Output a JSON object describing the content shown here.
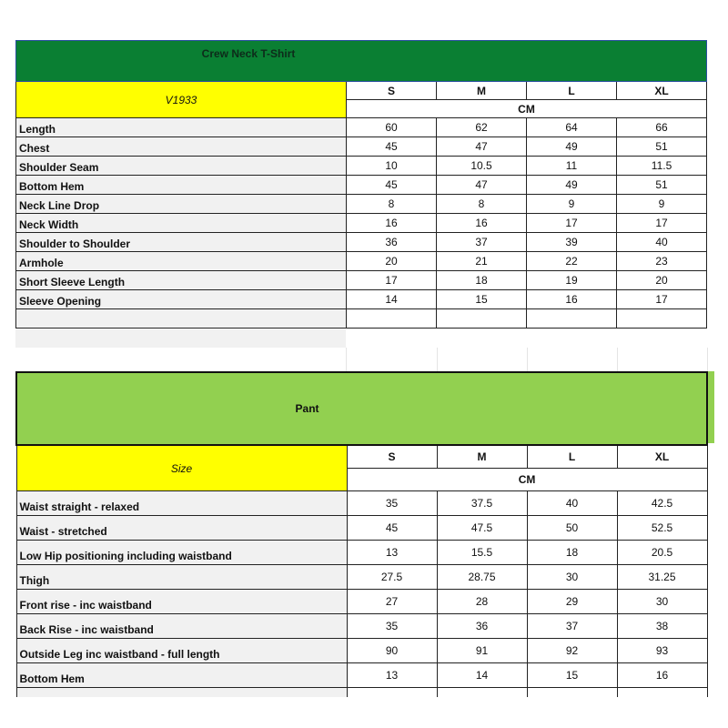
{
  "shirt": {
    "title": "Crew Neck T-Shirt",
    "code": "V1933",
    "sizes": [
      "S",
      "M",
      "L",
      "XL"
    ],
    "unit": "CM",
    "rows": [
      {
        "label": "Length",
        "values": [
          "60",
          "62",
          "64",
          "66"
        ]
      },
      {
        "label": "Chest",
        "values": [
          "45",
          "47",
          "49",
          "51"
        ]
      },
      {
        "label": "Shoulder Seam",
        "values": [
          "10",
          "10.5",
          "11",
          "11.5"
        ]
      },
      {
        "label": "Bottom Hem",
        "values": [
          "45",
          "47",
          "49",
          "51"
        ]
      },
      {
        "label": "Neck Line Drop",
        "values": [
          "8",
          "8",
          "9",
          "9"
        ]
      },
      {
        "label": "Neck Width",
        "values": [
          "16",
          "16",
          "17",
          "17"
        ]
      },
      {
        "label": "Shoulder to Shoulder",
        "values": [
          "36",
          "37",
          "39",
          "40"
        ]
      },
      {
        "label": "Armhole",
        "values": [
          "20",
          "21",
          "22",
          "23"
        ]
      },
      {
        "label": "Short Sleeve Length",
        "values": [
          "17",
          "18",
          "19",
          "20"
        ]
      },
      {
        "label": "Sleeve Opening",
        "values": [
          "14",
          "15",
          "16",
          "17"
        ]
      }
    ]
  },
  "pant": {
    "title": "Pant",
    "size_label": "Size",
    "sizes": [
      "S",
      "M",
      "L",
      "XL"
    ],
    "unit": "CM",
    "rows": [
      {
        "label": "Waist straight - relaxed",
        "values": [
          "35",
          "37.5",
          "40",
          "42.5"
        ]
      },
      {
        "label": "Waist - stretched",
        "values": [
          "45",
          "47.5",
          "50",
          "52.5"
        ]
      },
      {
        "label": "Low Hip positioning including waistband",
        "values": [
          "13",
          "15.5",
          "18",
          "20.5"
        ]
      },
      {
        "label": "Thigh",
        "values": [
          "27.5",
          "28.75",
          "30",
          "31.25"
        ]
      },
      {
        "label": "Front rise - inc waistband",
        "values": [
          "27",
          "28",
          "29",
          "30"
        ]
      },
      {
        "label": "Back Rise - inc waistband",
        "values": [
          "35",
          "36",
          "37",
          "38"
        ]
      },
      {
        "label": "Outside Leg inc waistband - full length",
        "values": [
          "90",
          "91",
          "92",
          "93"
        ]
      },
      {
        "label": "Bottom Hem",
        "values": [
          "13",
          "14",
          "15",
          "16"
        ]
      }
    ]
  },
  "colors": {
    "shirt_header": "#0a7f33",
    "pant_header": "#92d050",
    "highlight": "#ffff00",
    "label_bg": "#f1f1f1"
  }
}
